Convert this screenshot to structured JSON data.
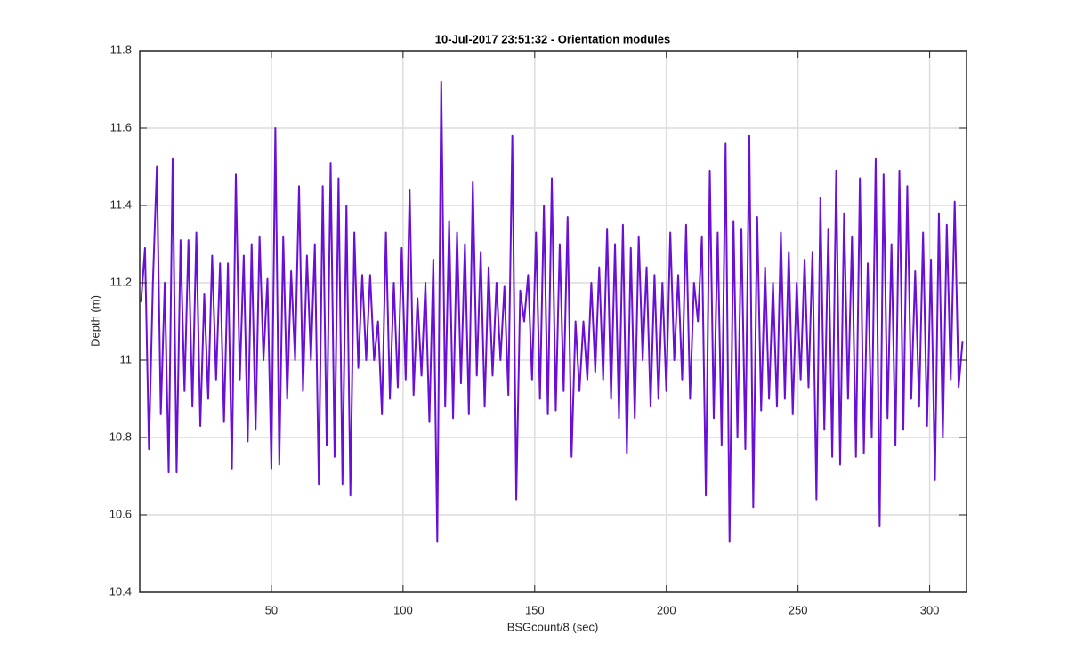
{
  "chart_data": {
    "type": "line",
    "title": "10-Jul-2017 23:51:32 - Orientation modules",
    "xlabel": "BSGcount/8 (sec)",
    "ylabel": "Depth (m)",
    "xlim": [
      0,
      314
    ],
    "ylim": [
      10.4,
      11.8
    ],
    "xticks": [
      50,
      100,
      150,
      200,
      250,
      300
    ],
    "yticks": [
      10.4,
      10.6,
      10.8,
      11,
      11.2,
      11.4,
      11.6,
      11.8
    ],
    "grid": true,
    "series": [
      {
        "color": "#6a0fd6",
        "x": [
          0.5,
          2,
          3.5,
          5,
          6.5,
          8,
          9.5,
          11,
          12.5,
          14,
          15.5,
          17,
          18.5,
          20,
          21.5,
          23,
          24.5,
          26,
          27.5,
          29,
          30.5,
          32,
          33.5,
          35,
          36.5,
          38,
          39.5,
          41,
          42.5,
          44,
          45.5,
          47,
          48.5,
          50,
          51.5,
          53,
          54.5,
          56,
          57.5,
          59,
          60.5,
          62,
          63.5,
          65,
          66.5,
          68,
          69.5,
          71,
          72.5,
          74,
          75.5,
          77,
          78.5,
          80,
          81.5,
          83,
          84.5,
          86,
          87.5,
          89,
          90.5,
          92,
          93.5,
          95,
          96.5,
          98,
          99.5,
          101,
          102.5,
          104,
          105.5,
          107,
          108.5,
          110,
          111.5,
          113,
          114.5,
          116,
          117.5,
          119,
          120.5,
          122,
          123.5,
          125,
          126.5,
          128,
          129.5,
          131,
          132.5,
          134,
          135.5,
          137,
          138.5,
          140,
          141.5,
          143,
          144.5,
          146,
          147.5,
          149,
          150.5,
          152,
          153.5,
          155,
          156.5,
          158,
          159.5,
          161,
          162.5,
          164,
          165.5,
          167,
          168.5,
          170,
          171.5,
          173,
          174.5,
          176,
          177.5,
          179,
          180.5,
          182,
          183.5,
          185,
          186.5,
          188,
          189.5,
          191,
          192.5,
          194,
          195.5,
          197,
          198.5,
          200,
          201.5,
          203,
          204.5,
          206,
          207.5,
          209,
          210.5,
          212,
          213.5,
          215,
          216.5,
          218,
          219.5,
          221,
          222.5,
          224,
          225.5,
          227,
          228.5,
          230,
          231.5,
          233,
          234.5,
          236,
          237.5,
          239,
          240.5,
          242,
          243.5,
          245,
          246.5,
          248,
          249.5,
          251,
          252.5,
          254,
          255.5,
          257,
          258.5,
          260,
          261.5,
          263,
          264.5,
          266,
          267.5,
          269,
          270.5,
          272,
          273.5,
          275,
          276.5,
          278,
          279.5,
          281,
          282.5,
          284,
          285.5,
          287,
          288.5,
          290,
          291.5,
          293,
          294.5,
          296,
          297.5,
          299,
          300.5,
          302,
          303.5,
          305,
          306.5,
          308,
          309.5,
          311,
          312.5
        ],
        "values": [
          11.15,
          11.29,
          10.77,
          11.2,
          11.5,
          10.86,
          11.2,
          10.71,
          11.52,
          10.71,
          11.31,
          10.92,
          11.31,
          10.88,
          11.33,
          10.83,
          11.17,
          10.9,
          11.27,
          10.95,
          11.25,
          10.84,
          11.25,
          10.72,
          11.48,
          10.95,
          11.27,
          10.79,
          11.3,
          10.82,
          11.32,
          11.0,
          11.21,
          10.72,
          11.6,
          10.73,
          11.32,
          10.9,
          11.23,
          11.0,
          11.45,
          10.92,
          11.27,
          11.0,
          11.3,
          10.68,
          11.45,
          10.78,
          11.51,
          10.75,
          11.47,
          10.68,
          11.4,
          10.65,
          11.33,
          10.98,
          11.22,
          11.0,
          11.22,
          11.0,
          11.1,
          10.86,
          11.33,
          10.9,
          11.2,
          10.93,
          11.29,
          10.95,
          11.44,
          10.91,
          11.16,
          10.96,
          11.2,
          10.84,
          11.26,
          10.53,
          11.72,
          10.88,
          11.36,
          10.85,
          11.33,
          10.94,
          11.3,
          10.86,
          11.46,
          10.96,
          11.28,
          10.88,
          11.24,
          10.96,
          11.2,
          11.0,
          11.19,
          10.91,
          11.58,
          10.64,
          11.18,
          11.1,
          11.22,
          10.95,
          11.33,
          10.9,
          11.4,
          10.86,
          11.47,
          10.87,
          11.3,
          10.92,
          11.37,
          10.75,
          11.1,
          10.92,
          11.1,
          10.95,
          11.2,
          10.97,
          11.24,
          10.95,
          11.34,
          10.9,
          11.3,
          10.85,
          11.35,
          10.76,
          11.29,
          10.85,
          11.32,
          11.0,
          11.24,
          10.88,
          11.22,
          10.9,
          11.2,
          10.92,
          11.33,
          11.0,
          11.22,
          10.95,
          11.35,
          10.9,
          11.2,
          11.1,
          11.32,
          10.65,
          11.49,
          10.85,
          11.33,
          10.78,
          11.56,
          10.53,
          11.36,
          10.8,
          11.34,
          10.77,
          11.58,
          10.62,
          11.37,
          10.87,
          11.24,
          10.9,
          11.2,
          10.88,
          11.33,
          10.9,
          11.28,
          10.86,
          11.2,
          10.95,
          11.26,
          10.93,
          11.28,
          10.64,
          11.42,
          10.82,
          11.34,
          10.75,
          11.49,
          10.73,
          11.38,
          10.9,
          11.32,
          10.75,
          11.47,
          10.76,
          11.25,
          10.8,
          11.52,
          10.57,
          11.48,
          10.85,
          11.3,
          10.78,
          11.49,
          10.82,
          11.45,
          10.9,
          11.23,
          10.88,
          11.33,
          10.83,
          11.26,
          10.69,
          11.38,
          10.8,
          11.35,
          10.95,
          11.41,
          10.93,
          11.05
        ]
      }
    ]
  }
}
